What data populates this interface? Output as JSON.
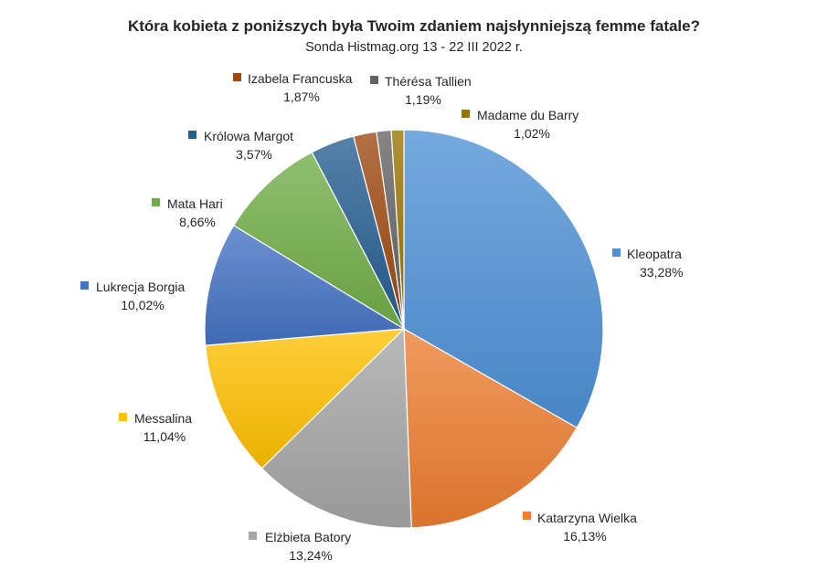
{
  "chart_data": {
    "type": "pie",
    "title": "Która kobieta z poniższych była Twoim zdaniem najsłynniejszą femme fatale?",
    "subtitle": "Sonda Histmag.org 13 - 22 III 2022 r.",
    "start_angle_deg": 0,
    "direction": "clockwise",
    "slices": [
      {
        "name": "Kleopatra",
        "value": 33.28,
        "label": "33,28%",
        "color": "#4e91d6"
      },
      {
        "name": "Katarzyna Wielka",
        "value": 16.13,
        "label": "16,13%",
        "color": "#ed7d31"
      },
      {
        "name": "Elżbieta Batory",
        "value": 13.24,
        "label": "13,24%",
        "color": "#a5a5a5"
      },
      {
        "name": "Messalina",
        "value": 11.04,
        "label": "11,04%",
        "color": "#ffc000"
      },
      {
        "name": "Lukrecja Borgia",
        "value": 10.02,
        "label": "10,02%",
        "color": "#4472c4"
      },
      {
        "name": "Mata Hari",
        "value": 8.66,
        "label": "8,66%",
        "color": "#70ad47"
      },
      {
        "name": "Królowa Margot",
        "value": 3.57,
        "label": "3,57%",
        "color": "#255e91"
      },
      {
        "name": "Izabela Francuska",
        "value": 1.87,
        "label": "1,87%",
        "color": "#9e480e"
      },
      {
        "name": "Thérésa Tallien",
        "value": 1.19,
        "label": "1,19%",
        "color": "#636363"
      },
      {
        "name": "Madame du Barry",
        "value": 1.02,
        "label": "1,02%",
        "color": "#997300"
      }
    ]
  }
}
